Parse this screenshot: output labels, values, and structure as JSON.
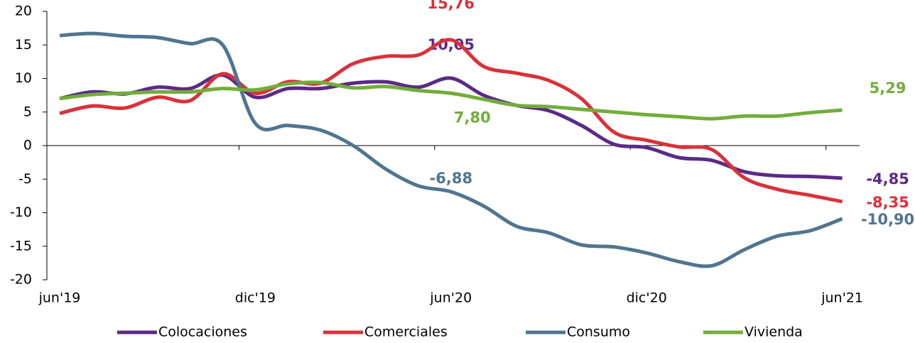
{
  "chart_data": {
    "type": "line",
    "categories": [
      "jun'19",
      null,
      null,
      null,
      null,
      null,
      "dic'19",
      null,
      null,
      null,
      null,
      null,
      "jun'20",
      null,
      null,
      null,
      null,
      null,
      "dic'20",
      null,
      null,
      null,
      null,
      null,
      "jun'21"
    ],
    "ylim": [
      -20,
      20
    ],
    "yticks": [
      -20,
      -15,
      -10,
      -5,
      0,
      5,
      10,
      15,
      20
    ],
    "legend": "bottom",
    "series": [
      {
        "name": "Colocaciones",
        "color": "#5b2a86",
        "values": [
          7.0,
          8.0,
          7.7,
          8.7,
          8.5,
          10.5,
          7.2,
          8.5,
          8.5,
          9.3,
          9.5,
          8.7,
          10.05,
          7.5,
          6.0,
          5.2,
          3.0,
          0.2,
          -0.3,
          -1.8,
          -2.2,
          -3.9,
          -4.5,
          -4.6,
          -4.85
        ],
        "value_labels": [
          null,
          null,
          null,
          null,
          null,
          null,
          null,
          null,
          null,
          null,
          null,
          null,
          "10,05",
          null,
          null,
          null,
          null,
          null,
          null,
          null,
          null,
          null,
          null,
          null,
          "-4,85"
        ]
      },
      {
        "name": "Comerciales",
        "color": "#d9313a",
        "values": [
          4.8,
          5.9,
          5.6,
          7.2,
          6.7,
          10.7,
          7.8,
          9.5,
          9.3,
          12.2,
          13.3,
          13.5,
          15.76,
          11.8,
          10.8,
          9.7,
          7.0,
          2.0,
          0.8,
          -0.2,
          -0.6,
          -4.8,
          -6.5,
          -7.4,
          -8.35
        ],
        "value_labels": [
          null,
          null,
          null,
          null,
          null,
          null,
          null,
          null,
          null,
          null,
          null,
          null,
          "15,76",
          null,
          null,
          null,
          null,
          null,
          null,
          null,
          null,
          null,
          null,
          null,
          "-8,35"
        ]
      },
      {
        "name": "Consumo",
        "color": "#4f7590",
        "values": [
          16.4,
          16.7,
          16.3,
          16.1,
          15.2,
          15.0,
          3.3,
          3.0,
          2.3,
          0.0,
          -3.5,
          -6.0,
          -6.88,
          -9.0,
          -12.0,
          -13.0,
          -14.8,
          -15.1,
          -16.0,
          -17.3,
          -17.9,
          -15.5,
          -13.5,
          -12.7,
          -10.9
        ],
        "value_labels": [
          null,
          null,
          null,
          null,
          null,
          null,
          null,
          null,
          null,
          null,
          null,
          null,
          "-6,88",
          null,
          null,
          null,
          null,
          null,
          null,
          null,
          null,
          null,
          null,
          null,
          "-10,90"
        ]
      },
      {
        "name": "Vivienda",
        "color": "#72ad3a",
        "values": [
          7.0,
          7.6,
          7.8,
          8.0,
          8.0,
          8.5,
          8.3,
          9.2,
          9.4,
          8.6,
          8.8,
          8.2,
          7.8,
          6.9,
          6.0,
          5.8,
          5.4,
          5.0,
          4.6,
          4.3,
          4.0,
          4.4,
          4.4,
          4.9,
          5.29
        ],
        "value_labels": [
          null,
          null,
          null,
          null,
          null,
          null,
          null,
          null,
          null,
          null,
          null,
          null,
          "7,80",
          null,
          null,
          null,
          null,
          null,
          null,
          null,
          null,
          null,
          null,
          null,
          "5,29"
        ]
      }
    ]
  }
}
